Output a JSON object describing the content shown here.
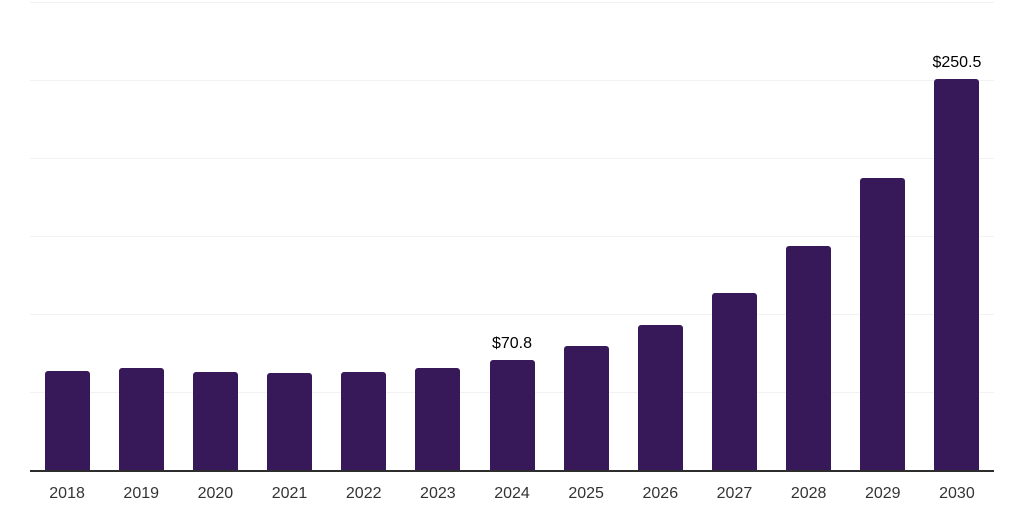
{
  "chart_data": {
    "type": "bar",
    "categories": [
      "2018",
      "2019",
      "2020",
      "2021",
      "2022",
      "2023",
      "2024",
      "2025",
      "2026",
      "2027",
      "2028",
      "2029",
      "2030"
    ],
    "values": [
      63.4,
      65.3,
      62.8,
      62.1,
      62.8,
      65.3,
      70.8,
      79.4,
      92.9,
      113.3,
      143.8,
      187.2,
      250.5
    ],
    "point_labels": [
      "",
      "",
      "",
      "",
      "",
      "",
      "$70.8",
      "",
      "",
      "",
      "",
      "",
      "$250.5"
    ],
    "title": "",
    "xlabel": "",
    "ylabel": "",
    "ylim": [
      0,
      300
    ],
    "grid_step": 50,
    "grid": "horizontal-only",
    "legend_position": "none",
    "y_tick_labels_visible": false,
    "bar_color": "#371858",
    "axis_color": "#2d2d2d",
    "grid_color": "#f2f2f2",
    "tick_label_color": "#333333",
    "value_label_color": "#000000"
  }
}
